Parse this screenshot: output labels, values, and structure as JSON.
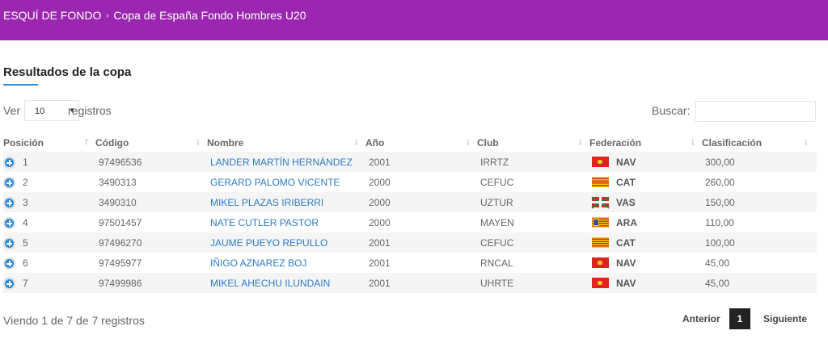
{
  "breadcrumb": {
    "parent": "ESQUÍ DE FONDO",
    "separator": "›",
    "current": "Copa de España Fondo Hombres U20"
  },
  "section": {
    "title": "Resultados de la copa"
  },
  "length_menu": {
    "prefix": "Ver",
    "value": "10",
    "suffix": "registros"
  },
  "search": {
    "label": "Buscar:",
    "value": ""
  },
  "columns": [
    "Posición",
    "Código",
    "Nombre",
    "Año",
    "Club",
    "Federación",
    "Clasificación"
  ],
  "rows": [
    {
      "pos": "1",
      "codigo": "97496536",
      "nombre": "LANDER MARTÍN HERNÁNDEZ",
      "anio": "2001",
      "club": "IRRTZ",
      "fed": "NAV",
      "flag": "navarra-flag-icon",
      "clas": "300,00"
    },
    {
      "pos": "2",
      "codigo": "3490313",
      "nombre": "GERARD PALOMO VICENTE",
      "anio": "2000",
      "club": "CEFUC",
      "fed": "CAT",
      "flag": "catalonia-flag-icon",
      "clas": "260,00"
    },
    {
      "pos": "3",
      "codigo": "3490310",
      "nombre": "MIKEL PLAZAS IRIBERRI",
      "anio": "2000",
      "club": "UZTUR",
      "fed": "VAS",
      "flag": "basque-flag-icon",
      "clas": "150,00"
    },
    {
      "pos": "4",
      "codigo": "97501457",
      "nombre": "NATE CUTLER PASTOR",
      "anio": "2000",
      "club": "MAYEN",
      "fed": "ARA",
      "flag": "aragon-flag-icon",
      "clas": "110,00"
    },
    {
      "pos": "5",
      "codigo": "97496270",
      "nombre": "JAUME PUEYO REPULLO",
      "anio": "2001",
      "club": "CEFUC",
      "fed": "CAT",
      "flag": "catalonia-flag-icon",
      "clas": "100,00"
    },
    {
      "pos": "6",
      "codigo": "97495977",
      "nombre": "IÑIGO AZNAREZ BOJ",
      "anio": "2001",
      "club": "RNCAL",
      "fed": "NAV",
      "flag": "navarra-flag-icon",
      "clas": "45,00"
    },
    {
      "pos": "7",
      "codigo": "97499986",
      "nombre": "MIKEL AHECHU ILUNDAIN",
      "anio": "2001",
      "club": "UHRTE",
      "fed": "NAV",
      "flag": "navarra-flag-icon",
      "clas": "45,00"
    }
  ],
  "footer": {
    "info": "Viendo 1 de 7 de 7 registros"
  },
  "pagination": {
    "prev": "Anterior",
    "current": "1",
    "next": "Siguiente"
  },
  "colors": {
    "header_bg": "#9b27b0",
    "accent": "#2f8bd8",
    "link": "#2f7bc5"
  }
}
